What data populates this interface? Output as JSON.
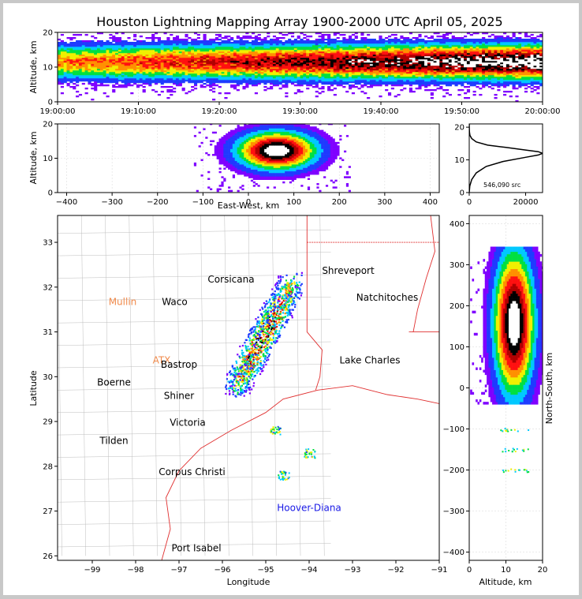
{
  "title": "Houston Lightning Mapping Array 1900-2000 UTC April 05, 2025",
  "chart_data": [
    {
      "type": "heatmap",
      "panel": "altitude-vs-time",
      "ylabel": "Altitude, km",
      "xlabel": "",
      "xlim": [
        "19:00:00",
        "20:00:00"
      ],
      "ylim": [
        0,
        20
      ],
      "xticks": [
        "19:00:00",
        "19:10:00",
        "19:20:00",
        "19:30:00",
        "19:40:00",
        "19:50:00",
        "20:00:00"
      ],
      "yticks": [
        0,
        10,
        20
      ],
      "band_center_km": 11.5,
      "grid": true
    },
    {
      "type": "heatmap",
      "panel": "altitude-vs-east-west",
      "xlabel": "East-West, km",
      "ylabel": "Altitude, km",
      "xlim": [
        -420,
        420
      ],
      "ylim": [
        0,
        20
      ],
      "xticks": [
        -400,
        -300,
        -200,
        -100,
        0,
        100,
        200,
        300,
        400
      ],
      "yticks": [
        0,
        10,
        20
      ],
      "core_x_km": [
        -30,
        150
      ],
      "grid": true
    },
    {
      "type": "line",
      "panel": "altitude-histogram",
      "xlabel": "",
      "ylabel": "",
      "xlim": [
        0,
        26000
      ],
      "ylim": [
        0,
        21
      ],
      "xticks": [
        0,
        20000
      ],
      "yticks": [
        0,
        10,
        20
      ],
      "annotation": "546,090 src",
      "series": [
        {
          "x": [
            0,
            200,
            900,
            2500,
            6000,
            12000,
            20000,
            24500,
            26000,
            24500,
            20000,
            13000,
            6500,
            2500,
            900,
            250,
            80,
            20,
            0
          ],
          "y": [
            0,
            2,
            4,
            6,
            8,
            9.5,
            10.8,
            11.5,
            12,
            12.5,
            13,
            13.8,
            14.5,
            15.5,
            16.5,
            17.5,
            18.5,
            19.5,
            21
          ]
        }
      ]
    },
    {
      "type": "scatter",
      "panel": "plan-view-map",
      "xlabel": "Longitude",
      "ylabel": "Latitude",
      "xlim": [
        -99.8,
        -91
      ],
      "ylim": [
        25.9,
        33.6
      ],
      "xticks": [
        -99,
        -98,
        -97,
        -96,
        -95,
        -94,
        -93,
        -92,
        -91
      ],
      "yticks": [
        26,
        27,
        28,
        29,
        30,
        31,
        32,
        33
      ],
      "labels": [
        {
          "text": "Shreveport",
          "lon": -93.1,
          "lat": 32.3,
          "color": "#000000"
        },
        {
          "text": "Corsicana",
          "lon": -95.8,
          "lat": 32.1,
          "color": "#000000"
        },
        {
          "text": "Mullin",
          "lon": -98.3,
          "lat": 31.6,
          "color": "#f08a4b"
        },
        {
          "text": "Waco",
          "lon": -97.1,
          "lat": 31.6,
          "color": "#000000"
        },
        {
          "text": "Natchitoches",
          "lon": -92.2,
          "lat": 31.7,
          "color": "#000000"
        },
        {
          "text": "ATX",
          "lon": -97.4,
          "lat": 30.3,
          "color": "#f08a4b"
        },
        {
          "text": "Bastrop",
          "lon": -97.0,
          "lat": 30.2,
          "color": "#000000"
        },
        {
          "text": "Lake Charles",
          "lon": -92.6,
          "lat": 30.3,
          "color": "#000000"
        },
        {
          "text": "Boerne",
          "lon": -98.5,
          "lat": 29.8,
          "color": "#000000"
        },
        {
          "text": "Shiner",
          "lon": -97.0,
          "lat": 29.5,
          "color": "#000000"
        },
        {
          "text": "Victoria",
          "lon": -96.8,
          "lat": 28.9,
          "color": "#000000"
        },
        {
          "text": "Tilden",
          "lon": -98.5,
          "lat": 28.5,
          "color": "#000000"
        },
        {
          "text": "Corpus Christi",
          "lon": -96.7,
          "lat": 27.8,
          "color": "#000000"
        },
        {
          "text": "Hoover-Diana",
          "lon": -94.0,
          "lat": 27.0,
          "color": "#1a1ae6"
        },
        {
          "text": "Port Isabel",
          "lon": -96.6,
          "lat": 26.1,
          "color": "#000000"
        }
      ],
      "storm_axis": {
        "from_lon": -95.7,
        "from_lat": 29.8,
        "to_lon": -94.4,
        "to_lat": 32.1
      }
    },
    {
      "type": "heatmap",
      "panel": "north-south-vs-altitude",
      "xlabel": "Altitude, km",
      "ylabel": "North-South, km",
      "xlim": [
        0,
        20
      ],
      "ylim": [
        -420,
        420
      ],
      "xticks": [
        0,
        10,
        20
      ],
      "yticks": [
        -400,
        -300,
        -200,
        -100,
        0,
        100,
        200,
        300,
        400
      ],
      "core_ns_km": [
        -20,
        330
      ],
      "grid": true
    }
  ],
  "colorscale": [
    "#7f00ff",
    "#1f3bff",
    "#00c8ff",
    "#00e040",
    "#f0f000",
    "#ff9000",
    "#ff1010",
    "#b00000",
    "#000000",
    "#ffffff"
  ]
}
